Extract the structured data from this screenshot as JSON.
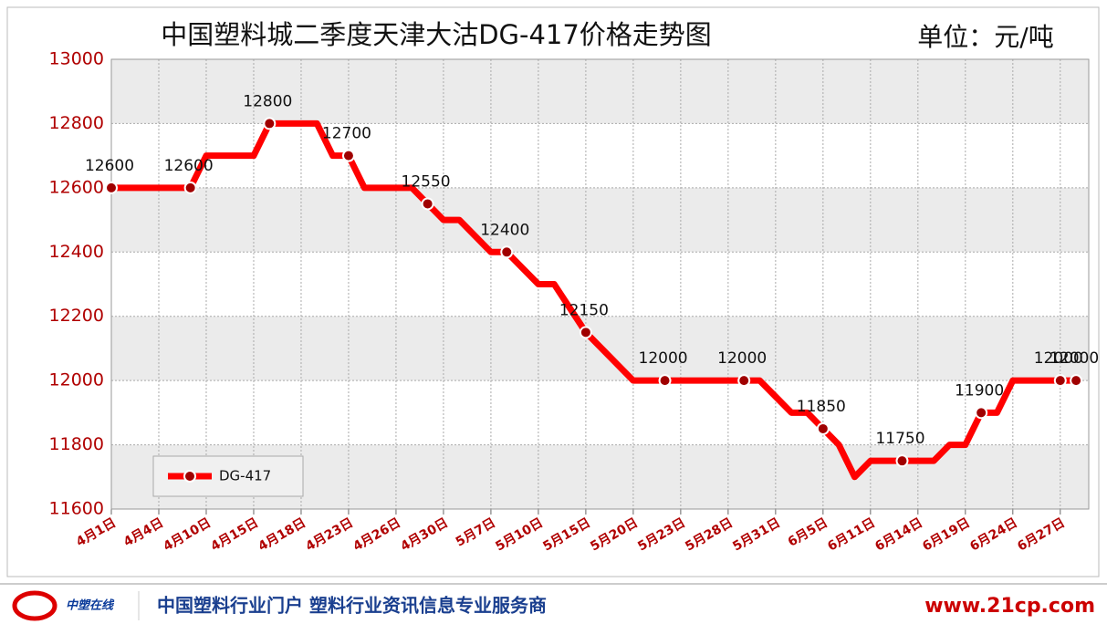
{
  "chart_data": {
    "type": "line",
    "title": "中国塑料城二季度天津大沽DG-417价格走势图",
    "unit": "单位：元/吨",
    "categories": [
      "4月1日",
      null,
      null,
      "4月4日",
      null,
      null,
      "4月10日",
      null,
      null,
      "4月15日",
      null,
      null,
      "4月18日",
      null,
      null,
      "4月23日",
      null,
      null,
      "4月26日",
      null,
      null,
      "4月30日",
      null,
      null,
      "5月7日",
      null,
      null,
      "5月10日",
      null,
      null,
      "5月15日",
      null,
      null,
      "5月20日",
      null,
      null,
      "5月23日",
      null,
      null,
      "5月28日",
      null,
      null,
      "5月31日",
      null,
      null,
      "6月5日",
      null,
      null,
      "6月11日",
      null,
      null,
      "6月14日",
      null,
      null,
      "6月19日",
      null,
      null,
      "6月24日",
      null,
      null,
      "6月27日",
      null
    ],
    "series": [
      {
        "name": "DG-417",
        "color": "#ff0000",
        "marker_color": "#a00000",
        "values": [
          12600,
          12600,
          12600,
          12600,
          12600,
          12600,
          12700,
          12700,
          12700,
          12700,
          12800,
          12800,
          12800,
          12800,
          12700,
          12700,
          12600,
          12600,
          12600,
          12600,
          12550,
          12500,
          12500,
          12450,
          12400,
          12400,
          12350,
          12300,
          12300,
          12225,
          12150,
          12100,
          12050,
          12000,
          12000,
          12000,
          12000,
          12000,
          12000,
          12000,
          12000,
          12000,
          11950,
          11900,
          11900,
          11850,
          11800,
          11700,
          11750,
          11750,
          11750,
          11750,
          11750,
          11800,
          11800,
          11900,
          11900,
          12000,
          12000,
          12000,
          12000,
          12000
        ],
        "markers": [
          0,
          5,
          10,
          15,
          20,
          25,
          30,
          35,
          40,
          45,
          50,
          55,
          60,
          61
        ]
      }
    ],
    "ylim": [
      11600,
      13000
    ],
    "yticks": [
      11600,
      11800,
      12000,
      12200,
      12400,
      12600,
      12800,
      13000
    ],
    "grid": true,
    "legend": "bottom-left"
  },
  "footer": {
    "logo": "中塑在线",
    "slogan": "中国塑料行业门户 塑料行业资讯信息专业服务商",
    "url": "www.21cp.com"
  }
}
